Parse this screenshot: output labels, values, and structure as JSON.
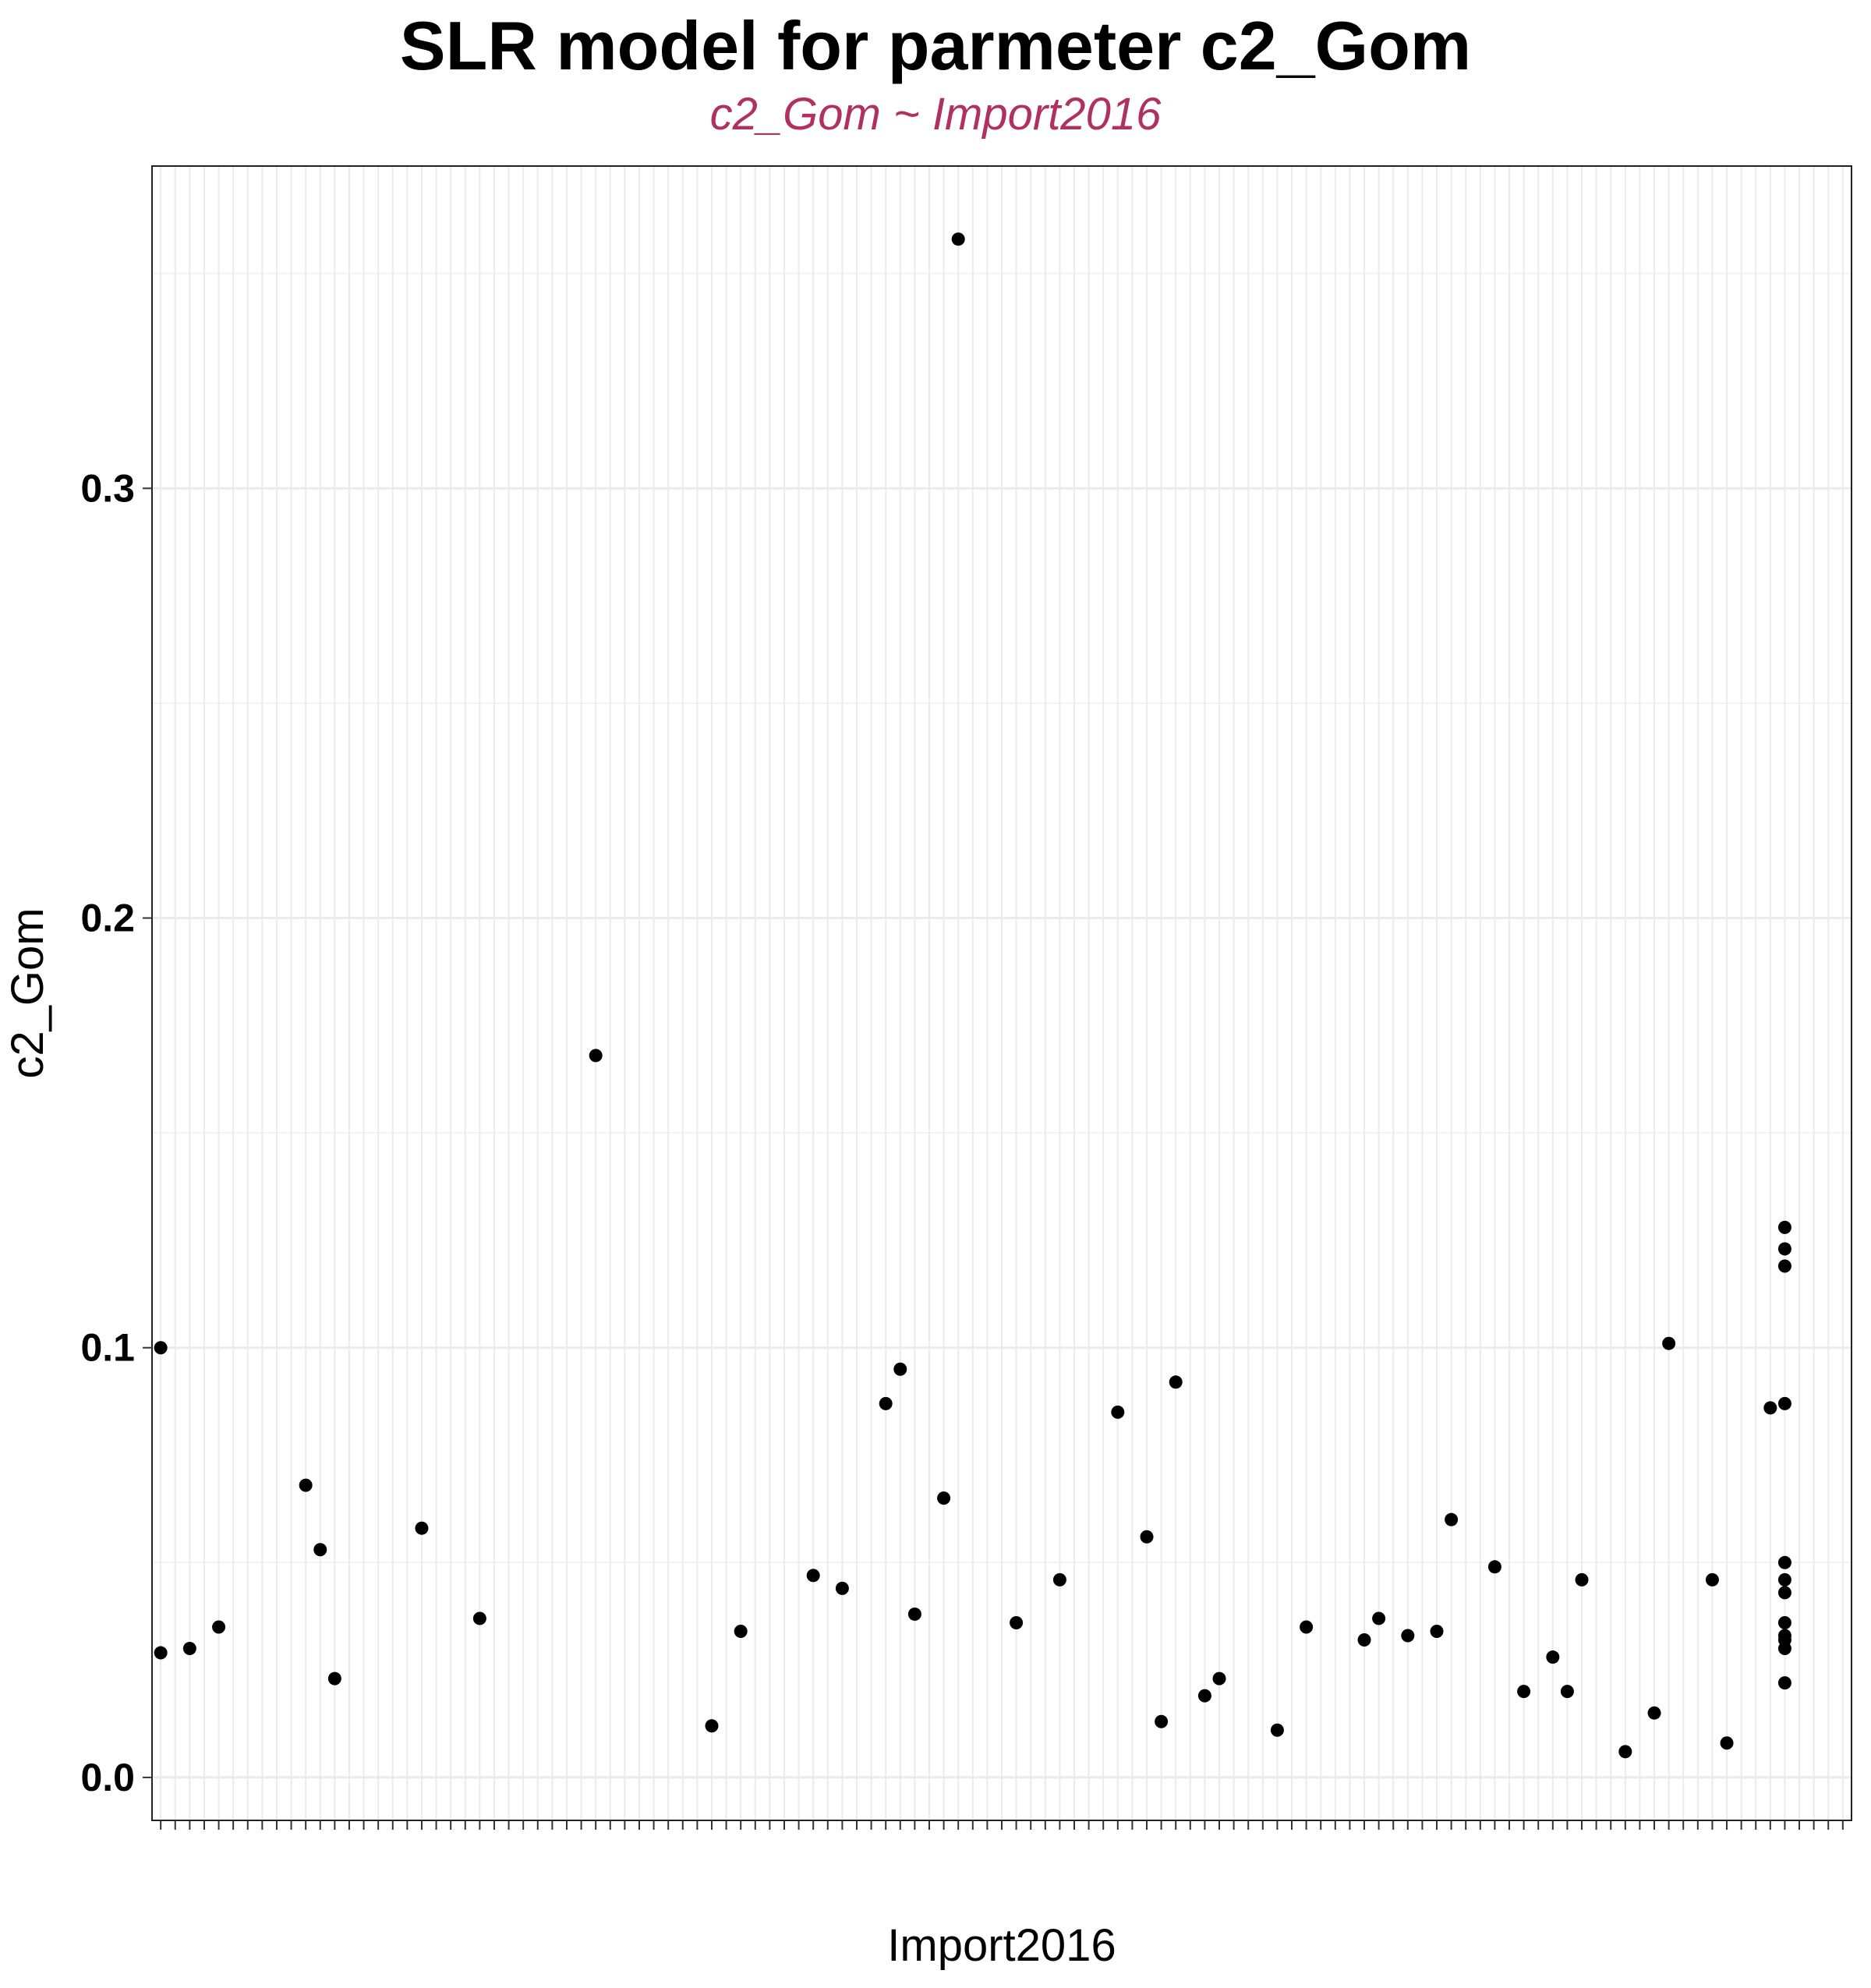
{
  "chart_data": {
    "type": "scatter",
    "title": "SLR model for parmeter c2_Gom",
    "subtitle": "c2_Gom ~ Import2016",
    "xlabel": "Import2016",
    "ylabel": "c2_Gom",
    "x_is_categorical": true,
    "x_category_count": 117,
    "ylim": [
      -0.01,
      0.375
    ],
    "yticks": [
      0.0,
      0.1,
      0.2,
      0.3
    ],
    "ytick_labels": [
      "0.0",
      "0.1",
      "0.2",
      "0.3"
    ],
    "grid": true,
    "points": [
      {
        "xi": 1,
        "y": 0.029
      },
      {
        "xi": 1,
        "y": 0.1
      },
      {
        "xi": 3,
        "y": 0.03
      },
      {
        "xi": 5,
        "y": 0.035
      },
      {
        "xi": 11,
        "y": 0.068
      },
      {
        "xi": 12,
        "y": 0.053
      },
      {
        "xi": 13,
        "y": 0.023
      },
      {
        "xi": 19,
        "y": 0.058
      },
      {
        "xi": 23,
        "y": 0.037
      },
      {
        "xi": 31,
        "y": 0.168
      },
      {
        "xi": 39,
        "y": 0.012
      },
      {
        "xi": 41,
        "y": 0.034
      },
      {
        "xi": 46,
        "y": 0.047
      },
      {
        "xi": 48,
        "y": 0.044
      },
      {
        "xi": 51,
        "y": 0.087
      },
      {
        "xi": 52,
        "y": 0.095
      },
      {
        "xi": 53,
        "y": 0.038
      },
      {
        "xi": 55,
        "y": 0.065
      },
      {
        "xi": 56,
        "y": 0.358
      },
      {
        "xi": 60,
        "y": 0.036
      },
      {
        "xi": 63,
        "y": 0.046
      },
      {
        "xi": 67,
        "y": 0.085
      },
      {
        "xi": 69,
        "y": 0.056
      },
      {
        "xi": 70,
        "y": 0.013
      },
      {
        "xi": 71,
        "y": 0.092
      },
      {
        "xi": 73,
        "y": 0.019
      },
      {
        "xi": 74,
        "y": 0.023
      },
      {
        "xi": 78,
        "y": 0.011
      },
      {
        "xi": 80,
        "y": 0.035
      },
      {
        "xi": 84,
        "y": 0.032
      },
      {
        "xi": 85,
        "y": 0.037
      },
      {
        "xi": 87,
        "y": 0.033
      },
      {
        "xi": 89,
        "y": 0.034
      },
      {
        "xi": 90,
        "y": 0.06
      },
      {
        "xi": 93,
        "y": 0.049
      },
      {
        "xi": 95,
        "y": 0.02
      },
      {
        "xi": 97,
        "y": 0.028
      },
      {
        "xi": 98,
        "y": 0.02
      },
      {
        "xi": 99,
        "y": 0.046
      },
      {
        "xi": 102,
        "y": 0.006
      },
      {
        "xi": 104,
        "y": 0.015
      },
      {
        "xi": 105,
        "y": 0.101
      },
      {
        "xi": 108,
        "y": 0.046
      },
      {
        "xi": 109,
        "y": 0.008
      },
      {
        "xi": 112,
        "y": 0.086
      },
      {
        "xi": 113,
        "y": 0.128
      },
      {
        "xi": 113,
        "y": 0.123
      },
      {
        "xi": 113,
        "y": 0.119
      },
      {
        "xi": 113,
        "y": 0.087
      },
      {
        "xi": 113,
        "y": 0.05
      },
      {
        "xi": 113,
        "y": 0.046
      },
      {
        "xi": 113,
        "y": 0.043
      },
      {
        "xi": 113,
        "y": 0.036
      },
      {
        "xi": 113,
        "y": 0.033
      },
      {
        "xi": 113,
        "y": 0.032
      },
      {
        "xi": 113,
        "y": 0.03
      },
      {
        "xi": 113,
        "y": 0.022
      }
    ]
  }
}
